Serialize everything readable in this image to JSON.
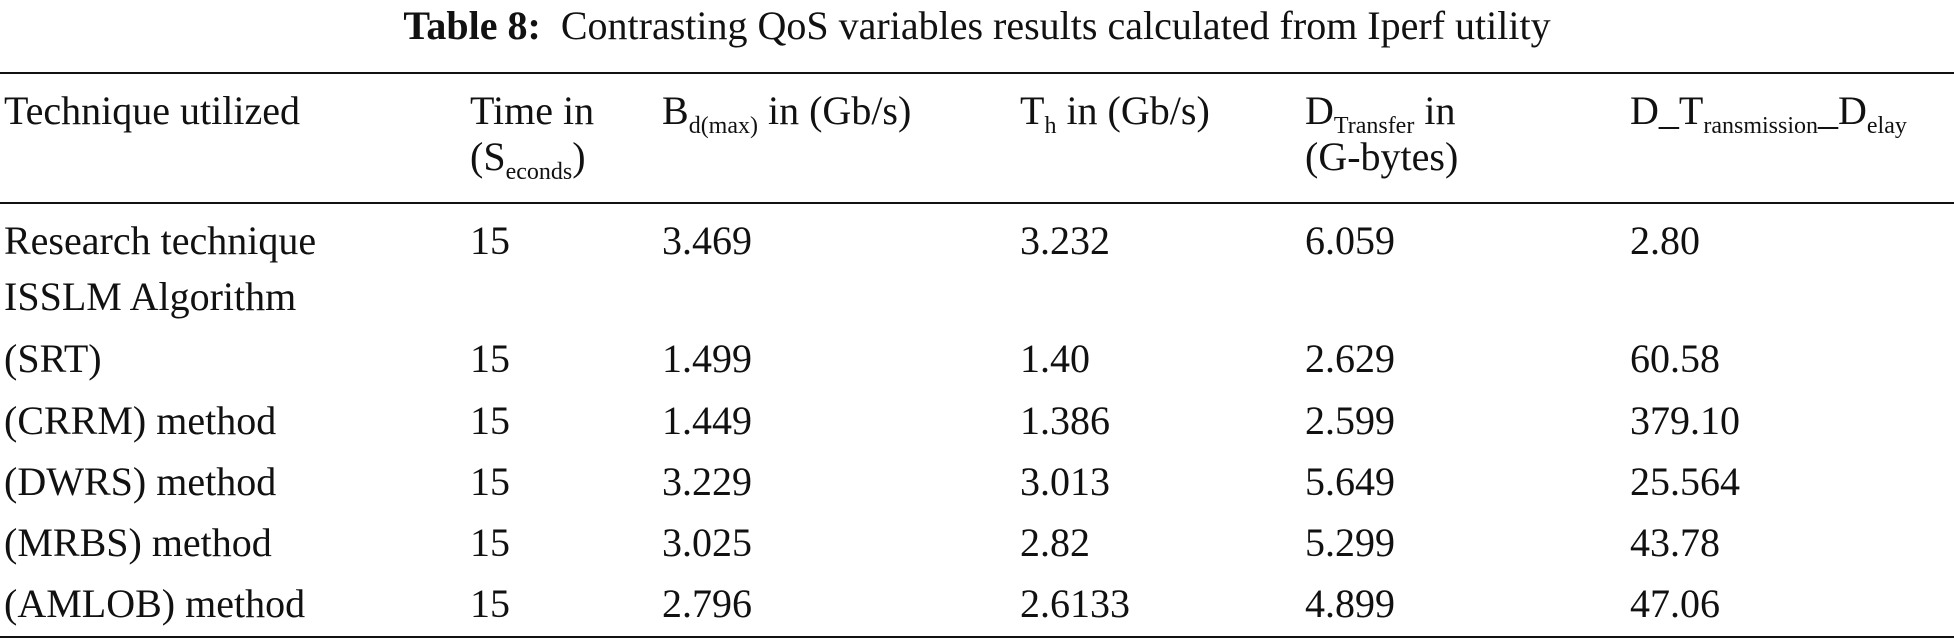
{
  "caption": {
    "label": "Table 8:",
    "text": "Contrasting QoS variables results calculated from Iperf utility"
  },
  "header": {
    "technique": "Technique utilized",
    "time_line1": "Time in",
    "time_open": "(S",
    "time_sub": "econds",
    "time_close": ")",
    "bd_main": "B",
    "bd_sub": "d(max)",
    "bd_rest": " in (Gb/s)",
    "th_main": "T",
    "th_sub": "h",
    "th_rest": " in (Gb/s)",
    "dt_main": "D",
    "dt_sub": "Transfer",
    "dt_rest": " in",
    "dt_line2": "(G-bytes)",
    "dtd_a": "D_T",
    "dtd_sub1": "ransmission",
    "dtd_b": "_D",
    "dtd_sub2": "elay"
  },
  "rows": [
    {
      "technique": "Research technique",
      "technique_line2": "ISSLM Algorithm",
      "time": "15",
      "bd": "3.469",
      "th": "3.232",
      "dt": "6.059",
      "delay": "2.80"
    },
    {
      "technique": "(SRT)",
      "time": "15",
      "bd": "1.499",
      "th": "1.40",
      "dt": "2.629",
      "delay": "60.58"
    },
    {
      "technique": "(CRRM) method",
      "time": "15",
      "bd": "1.449",
      "th": "1.386",
      "dt": "2.599",
      "delay": "379.10"
    },
    {
      "technique": "(DWRS) method",
      "time": "15",
      "bd": "3.229",
      "th": "3.013",
      "dt": "5.649",
      "delay": "25.564"
    },
    {
      "technique": "(MRBS) method",
      "time": "15",
      "bd": "3.025",
      "th": "2.82",
      "dt": "5.299",
      "delay": "43.78"
    },
    {
      "technique": "(AMLOB) method",
      "time": "15",
      "bd": "2.796",
      "th": "2.6133",
      "dt": "4.899",
      "delay": "47.06"
    }
  ]
}
